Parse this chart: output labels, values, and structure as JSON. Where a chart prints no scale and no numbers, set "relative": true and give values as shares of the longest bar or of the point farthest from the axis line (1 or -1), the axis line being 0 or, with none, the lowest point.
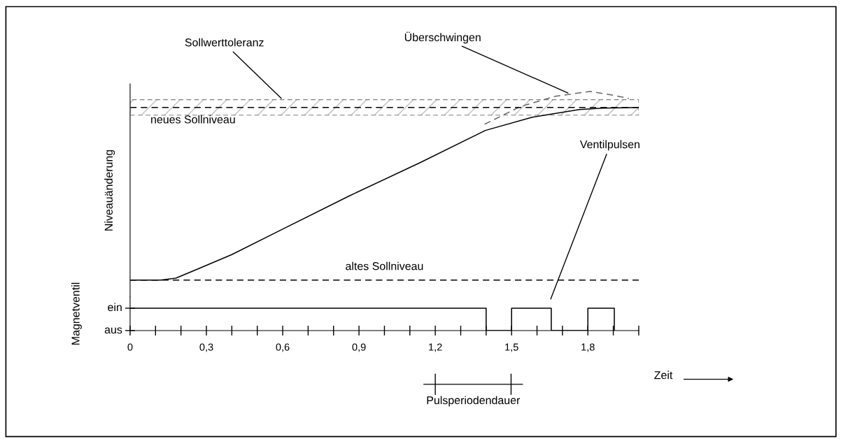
{
  "chart_data": [
    {
      "type": "line",
      "relative": true,
      "ylabel": "Niveauänderung",
      "xlim": [
        0,
        2.0
      ],
      "tick_labels": false,
      "grid": false,
      "legend": false,
      "marker": "none",
      "series": [
        {
          "color": "#000000",
          "line_style": "solid",
          "x": [
            0,
            0.12,
            0.18,
            0.267,
            0.4,
            0.59,
            0.865,
            1.14,
            1.397,
            1.581,
            1.766,
            1.857,
            2.0
          ],
          "values": [
            0,
            0,
            0.01,
            0.059,
            0.135,
            0.263,
            0.448,
            0.622,
            0.793,
            0.863,
            0.904,
            0.911,
            0.915
          ]
        },
        {
          "color": "#666666",
          "line_style": "dashed",
          "x": [
            1.394,
            1.534,
            1.672,
            1.81,
            1.904,
            1.961
          ],
          "values": [
            0.826,
            0.919,
            0.974,
            1,
            0.978,
            0.963
          ]
        }
      ],
      "ref_lines": [
        {
          "axis": "y",
          "value": 0.915,
          "label": "neues Sollniveau",
          "line_style": "dashed",
          "color": "#000000"
        },
        {
          "axis": "y",
          "value": 0,
          "label": "altes Sollniveau",
          "line_style": "dashed",
          "color": "#000000"
        }
      ],
      "bands": [
        {
          "axis": "y",
          "from": 0.874,
          "to": 0.956,
          "label": "Sollwerttoleranz",
          "color": "#000000"
        }
      ],
      "annotations": [
        "Überschwingen"
      ]
    },
    {
      "type": "step",
      "relative": true,
      "ylabel": "Magnetventil",
      "xlabel": "Zeit",
      "xlim": [
        0,
        2.0
      ],
      "grid": false,
      "legend": false,
      "xticks": [
        0,
        {
          "value": 0.1,
          "label": null
        },
        {
          "value": 0.2,
          "label": null
        },
        {
          "value": 0.3,
          "label": "0,3"
        },
        {
          "value": 0.4,
          "label": null
        },
        {
          "value": 0.5,
          "label": null
        },
        {
          "value": 0.6,
          "label": "0,6"
        },
        {
          "value": 0.7,
          "label": null
        },
        {
          "value": 0.8,
          "label": null
        },
        {
          "value": 0.9,
          "label": "0,9"
        },
        {
          "value": 1.0,
          "label": null
        },
        {
          "value": 1.1,
          "label": null
        },
        {
          "value": 1.2,
          "label": "1,2"
        },
        {
          "value": 1.3,
          "label": null
        },
        {
          "value": 1.4,
          "label": null
        },
        {
          "value": 1.5,
          "label": "1,5"
        },
        {
          "value": 1.6,
          "label": null
        },
        {
          "value": 1.7,
          "label": null
        },
        {
          "value": 1.8,
          "label": "1,8"
        },
        {
          "value": 1.9,
          "label": null
        },
        {
          "value": 2.0,
          "label": null
        }
      ],
      "series": [
        {
          "color": "#000000",
          "line_style": "solid",
          "x": [
            0,
            1.4,
            1.5,
            1.656,
            1.8,
            1.904
          ],
          "values": [
            1,
            0,
            1,
            0,
            1,
            0
          ]
        }
      ],
      "annotations": [
        "ein",
        "aus",
        "Ventilpulsen",
        "Pulsperiodendauer"
      ]
    }
  ]
}
